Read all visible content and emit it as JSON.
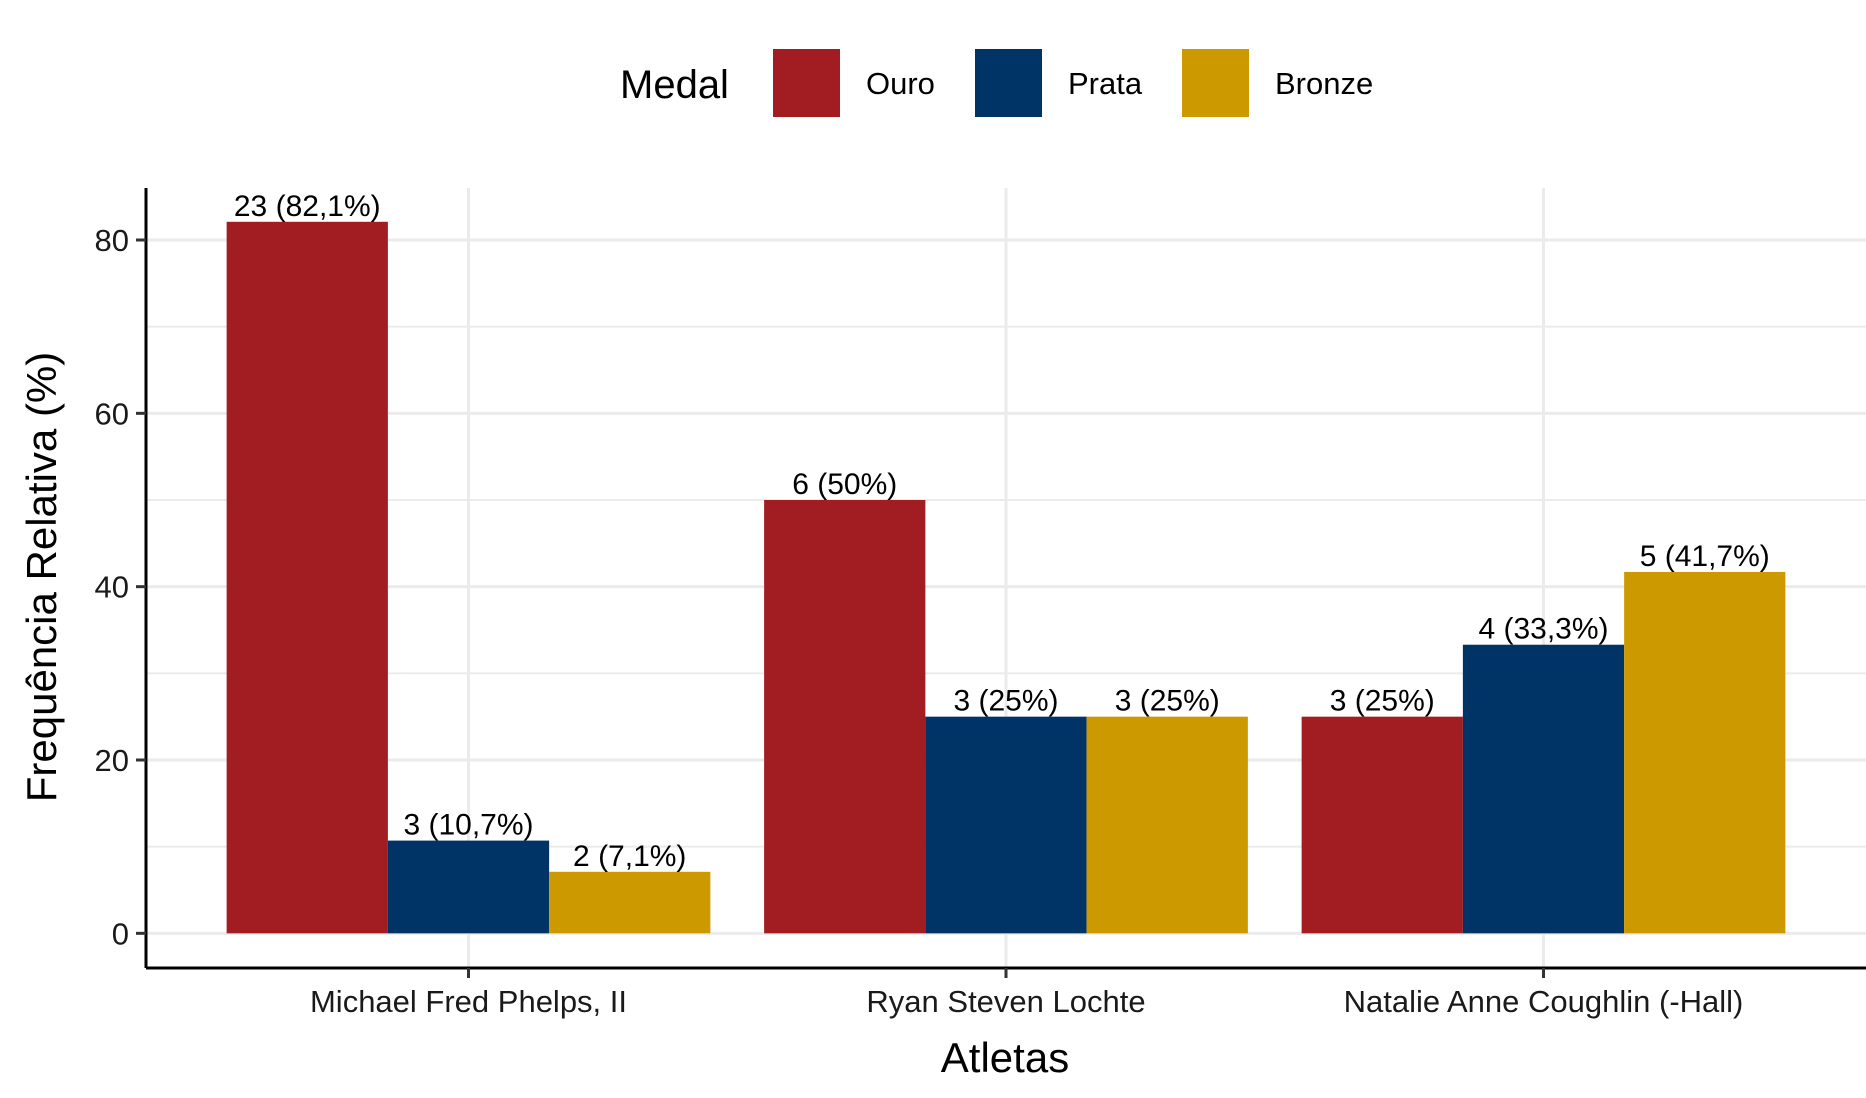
{
  "chart_data": {
    "type": "bar",
    "categories": [
      "Michael Fred Phelps, II",
      "Ryan Steven Lochte",
      "Natalie Anne Coughlin (-Hall)"
    ],
    "series": [
      {
        "name": "Ouro",
        "color": "#A11D21",
        "values": [
          82.1,
          50,
          25
        ],
        "labels": [
          "23 (82,1%)",
          "6 (50%)",
          "3 (25%)"
        ]
      },
      {
        "name": "Prata",
        "color": "#003366",
        "values": [
          10.7,
          25,
          33.3
        ],
        "labels": [
          "3 (10,7%)",
          "3 (25%)",
          "4 (33,3%)"
        ]
      },
      {
        "name": "Bronze",
        "color": "#CC9900",
        "values": [
          7.1,
          25,
          41.7
        ],
        "labels": [
          "2 (7,1%)",
          "3 (25%)",
          "5 (41,7%)"
        ]
      }
    ],
    "xlabel": "Atletas",
    "ylabel": "Frequência Relativa (%)",
    "ylim": [
      -4,
      86
    ],
    "yticks": [
      0,
      20,
      40,
      60,
      80
    ],
    "legend": {
      "title": "Medal",
      "position": "top"
    },
    "grid": true
  }
}
